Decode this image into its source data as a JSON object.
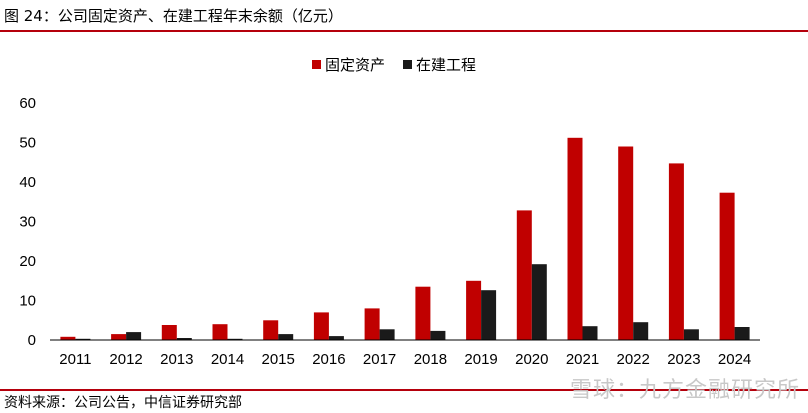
{
  "figure": {
    "title": "图 24：公司固定资产、在建工程年末余额（亿元）",
    "source": "资料来源：公司公告，中信证券研究部",
    "watermark": "雪球：九方金融研究所"
  },
  "colors": {
    "fixed_assets": "#c00000",
    "construction": "#1a1a1a",
    "rule": "#b5000c"
  },
  "chart_data": {
    "type": "bar",
    "title": "",
    "xlabel": "",
    "ylabel": "",
    "categories": [
      "2011",
      "2012",
      "2013",
      "2014",
      "2015",
      "2016",
      "2017",
      "2018",
      "2019",
      "2020",
      "2021",
      "2022",
      "2023",
      "2024"
    ],
    "series": [
      {
        "name": "固定资产",
        "values": [
          0.8,
          1.5,
          3.8,
          4.0,
          5.0,
          7.0,
          8.0,
          13.5,
          15.0,
          32.8,
          51.2,
          49.0,
          44.7,
          37.3
        ]
      },
      {
        "name": "在建工程",
        "values": [
          0.3,
          2.0,
          0.5,
          0.3,
          1.5,
          1.0,
          2.7,
          2.3,
          12.6,
          19.2,
          3.5,
          4.5,
          2.7,
          3.3
        ]
      }
    ],
    "ylim": [
      0,
      60
    ],
    "yticks": [
      0,
      10,
      20,
      30,
      40,
      50,
      60
    ],
    "grid": false,
    "legend": "top-center"
  }
}
